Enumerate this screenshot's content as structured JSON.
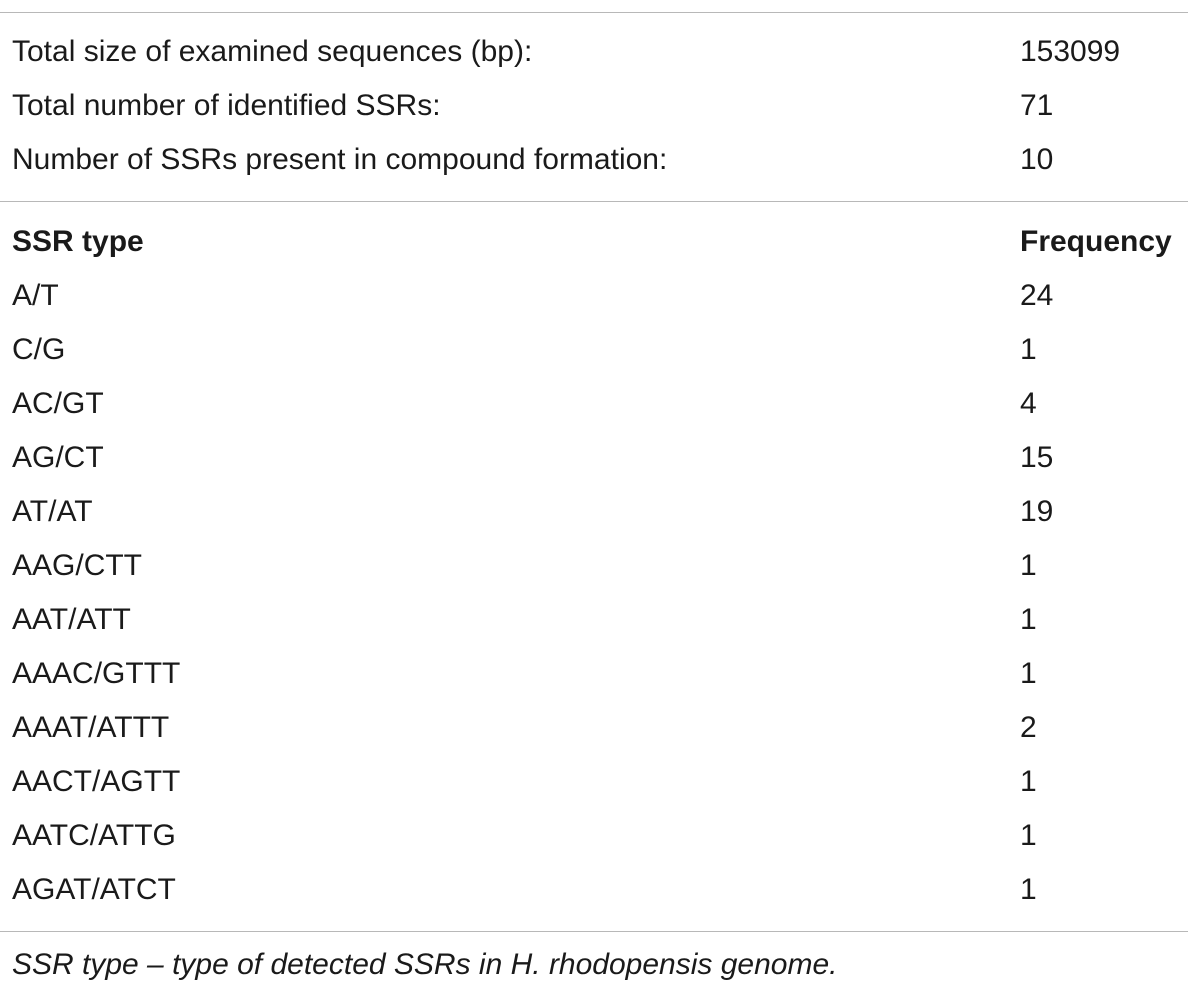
{
  "summary": [
    {
      "label": "Total size of examined sequences (bp):",
      "value": "153099"
    },
    {
      "label": "Total number of identified SSRs:",
      "value": "71"
    },
    {
      "label": "Number of SSRs present in compound formation:",
      "value": "10"
    }
  ],
  "header": {
    "type": "SSR type",
    "frequency": "Frequency"
  },
  "rows": [
    {
      "type": "A/T",
      "frequency": "24"
    },
    {
      "type": "C/G",
      "frequency": "1"
    },
    {
      "type": "AC/GT",
      "frequency": "4"
    },
    {
      "type": "AG/CT",
      "frequency": "15"
    },
    {
      "type": "AT/AT",
      "frequency": "19"
    },
    {
      "type": "AAG/CTT",
      "frequency": "1"
    },
    {
      "type": "AAT/ATT",
      "frequency": "1"
    },
    {
      "type": "AAAC/GTTT",
      "frequency": "1"
    },
    {
      "type": "AAAT/ATTT",
      "frequency": "2"
    },
    {
      "type": "AACT/AGTT",
      "frequency": "1"
    },
    {
      "type": "AATC/ATTG",
      "frequency": "1"
    },
    {
      "type": "AGAT/ATCT",
      "frequency": "1"
    }
  ],
  "footnote": "SSR type – type of detected SSRs in H. rhodopensis genome."
}
